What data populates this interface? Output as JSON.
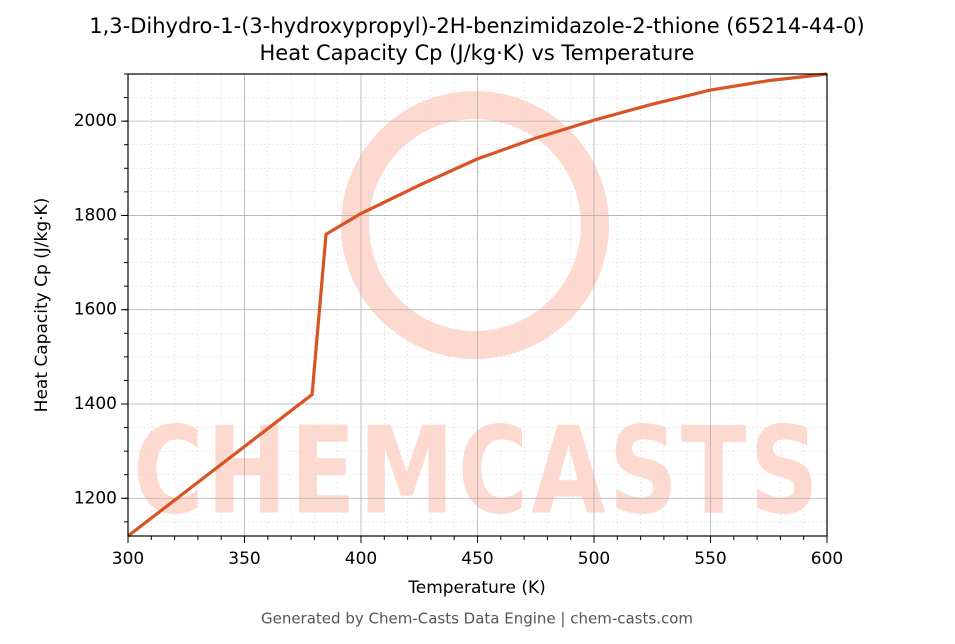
{
  "chart_data": {
    "type": "line",
    "title": "1,3-Dihydro-1-(3-hydroxypropyl)-2H-benzimidazole-2-thione (65214-44-0)",
    "subtitle": "Heat Capacity Cp (J/kg·K) vs Temperature",
    "x_label": "Temperature (K)",
    "y_label": "Heat Capacity Cp (J/kg·K)",
    "footer": "Generated by Chem-Casts Data Engine | chem-casts.com",
    "watermark": "CHEMCASTS",
    "x": [
      300,
      379,
      385,
      400,
      425,
      450,
      475,
      500,
      525,
      550,
      575,
      600
    ],
    "series": [
      {
        "name": "Cp",
        "color": "#d95425",
        "values": [
          1120,
          1420,
          1760,
          1804,
          1864,
          1920,
          1964,
          2002,
          2036,
          2066,
          2086,
          2100
        ]
      }
    ],
    "xlim": [
      300,
      600
    ],
    "xticks": [
      300,
      350,
      400,
      450,
      500,
      550,
      600
    ],
    "ylim": [
      1120,
      2100
    ],
    "yticks": [
      1200,
      1400,
      1600,
      1800,
      2000
    ],
    "grid": true,
    "minor_grid": true
  }
}
